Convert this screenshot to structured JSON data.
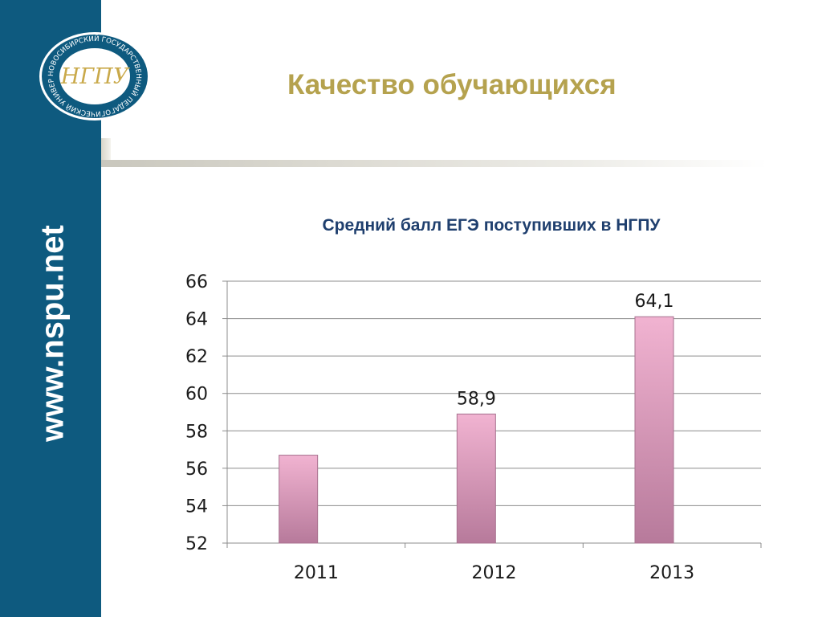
{
  "slide": {
    "title": "Качество обучающихся",
    "site_url": "www.nspu.net"
  },
  "logo": {
    "text": "НОВОСИБИРСКИЙ ГОСУДАРСТВЕННЫЙ ПЕДАГОГИЧЕСКИЙ УНИВЕРСИТЕТ",
    "monogram": "НГПУ"
  },
  "colors": {
    "sidebar": "#0e5a7f",
    "title": "#b5a24e",
    "chart_title": "#1f3f6e",
    "bar_light": "#f1b3d1",
    "bar_dark": "#b77a9b"
  },
  "chart_data": {
    "type": "bar",
    "title": "Средний балл ЕГЭ поступивших в НГПУ",
    "categories": [
      "2011",
      "2012",
      "2013"
    ],
    "values": [
      56.7,
      58.9,
      64.1
    ],
    "data_labels": [
      "",
      "58,9",
      "64,1"
    ],
    "ylim": [
      52,
      66
    ],
    "yticks": [
      52,
      54,
      56,
      58,
      60,
      62,
      64,
      66
    ],
    "grid": true,
    "legend": "none",
    "xlabel": "",
    "ylabel": ""
  }
}
